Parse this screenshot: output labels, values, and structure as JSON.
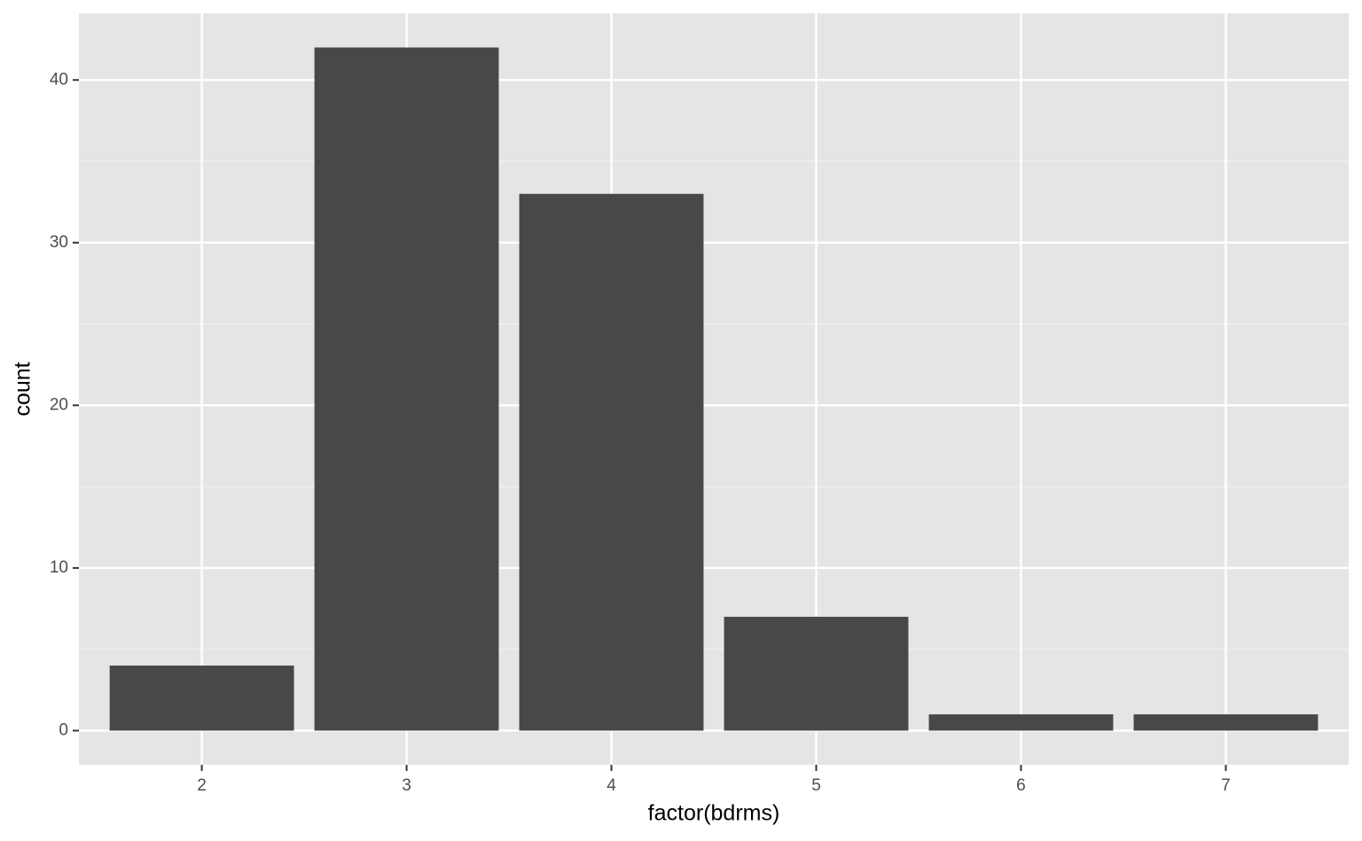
{
  "chart_data": {
    "type": "bar",
    "x_label": "factor(bdrms)",
    "y_label": "count",
    "categories": [
      "2",
      "3",
      "4",
      "5",
      "6",
      "7"
    ],
    "values": [
      4,
      42,
      33,
      7,
      1,
      1
    ],
    "color": "#484848",
    "ylim": [
      -2.1,
      44.1
    ],
    "yticks": [
      0,
      10,
      20,
      30,
      40
    ],
    "grid": true
  }
}
